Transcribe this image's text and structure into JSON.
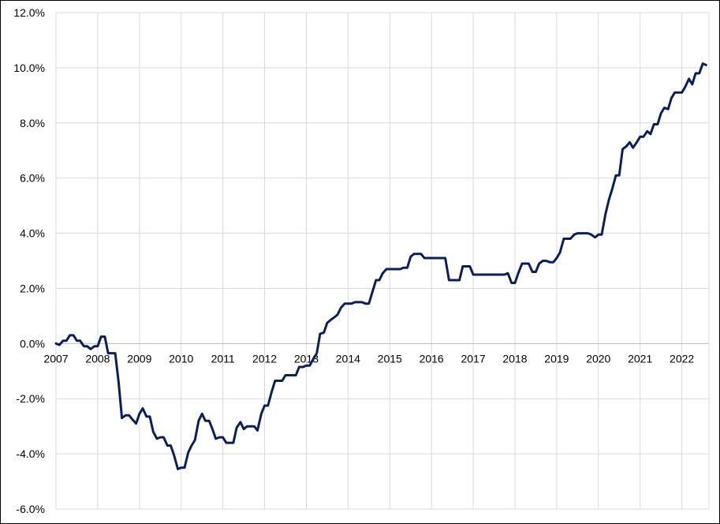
{
  "chart_data": {
    "type": "line",
    "title": "",
    "xlabel": "",
    "ylabel": "",
    "ylim": [
      -6,
      12
    ],
    "xlim": [
      2007.0,
      2022.65
    ],
    "grid": true,
    "legend": "none",
    "line_color": "#0b1f5c",
    "grid_color": "#d9d9d9",
    "x_ticks": [
      "2007",
      "2008",
      "2009",
      "2010",
      "2011",
      "2012",
      "2013",
      "2014",
      "2015",
      "2016",
      "2017",
      "2018",
      "2019",
      "2020",
      "2021",
      "2022"
    ],
    "y_ticks": [
      "12.0%",
      "10.0%",
      "8.0%",
      "6.0%",
      "4.0%",
      "2.0%",
      "0.0%",
      "-2.0%",
      "-4.0%",
      "-6.0%"
    ],
    "series": [
      {
        "x": [
          2007.0,
          2007.08,
          2007.17,
          2007.25,
          2007.33,
          2007.42,
          2007.5,
          2007.58,
          2007.67,
          2007.75,
          2007.83,
          2007.92,
          2008.0,
          2008.08,
          2008.17,
          2008.25,
          2008.33,
          2008.42,
          2008.5,
          2008.58,
          2008.67,
          2008.75,
          2008.83,
          2008.92,
          2009.0,
          2009.08,
          2009.17,
          2009.25,
          2009.33,
          2009.42,
          2009.5,
          2009.58,
          2009.67,
          2009.75,
          2009.83,
          2009.92,
          2010.0,
          2010.08,
          2010.17,
          2010.25,
          2010.33,
          2010.42,
          2010.5,
          2010.58,
          2010.67,
          2010.75,
          2010.83,
          2010.92,
          2011.0,
          2011.08,
          2011.17,
          2011.25,
          2011.33,
          2011.42,
          2011.5,
          2011.58,
          2011.67,
          2011.75,
          2011.83,
          2011.92,
          2012.0,
          2012.08,
          2012.17,
          2012.25,
          2012.33,
          2012.42,
          2012.5,
          2012.58,
          2012.67,
          2012.75,
          2012.83,
          2012.92,
          2013.0,
          2013.08,
          2013.17,
          2013.25,
          2013.33,
          2013.42,
          2013.5,
          2013.58,
          2013.67,
          2013.75,
          2013.83,
          2013.92,
          2014.0,
          2014.08,
          2014.17,
          2014.25,
          2014.33,
          2014.42,
          2014.5,
          2014.58,
          2014.67,
          2014.75,
          2014.83,
          2014.92,
          2015.0,
          2015.08,
          2015.17,
          2015.25,
          2015.33,
          2015.42,
          2015.5,
          2015.58,
          2015.67,
          2015.75,
          2015.83,
          2015.92,
          2016.0,
          2016.08,
          2016.17,
          2016.25,
          2016.33,
          2016.42,
          2016.5,
          2016.58,
          2016.67,
          2016.75,
          2016.83,
          2016.92,
          2017.0,
          2017.08,
          2017.17,
          2017.25,
          2017.33,
          2017.42,
          2017.5,
          2017.58,
          2017.67,
          2017.75,
          2017.83,
          2017.92,
          2018.0,
          2018.08,
          2018.17,
          2018.25,
          2018.33,
          2018.42,
          2018.5,
          2018.58,
          2018.67,
          2018.75,
          2018.83,
          2018.92,
          2019.0,
          2019.08,
          2019.17,
          2019.25,
          2019.33,
          2019.42,
          2019.5,
          2019.58,
          2019.67,
          2019.75,
          2019.83,
          2019.92,
          2020.0,
          2020.08,
          2020.17,
          2020.25,
          2020.33,
          2020.42,
          2020.5,
          2020.58,
          2020.67,
          2020.75,
          2020.83,
          2020.92,
          2021.0,
          2021.08,
          2021.17,
          2021.25,
          2021.33,
          2021.42,
          2021.5,
          2021.58,
          2021.67,
          2021.75,
          2021.83,
          2021.92,
          2022.0,
          2022.08,
          2022.17,
          2022.25,
          2022.33,
          2022.42,
          2022.5,
          2022.58
        ],
        "values": [
          0.0,
          -0.05,
          0.1,
          0.1,
          0.3,
          0.3,
          0.1,
          0.1,
          -0.1,
          -0.1,
          -0.2,
          -0.1,
          -0.1,
          0.25,
          0.25,
          -0.35,
          -0.35,
          -0.35,
          -1.4,
          -2.7,
          -2.6,
          -2.6,
          -2.75,
          -2.9,
          -2.55,
          -2.35,
          -2.65,
          -2.65,
          -3.2,
          -3.45,
          -3.4,
          -3.4,
          -3.7,
          -3.7,
          -4.05,
          -4.55,
          -4.5,
          -4.5,
          -3.95,
          -3.7,
          -3.5,
          -2.8,
          -2.55,
          -2.8,
          -2.8,
          -3.1,
          -3.45,
          -3.4,
          -3.4,
          -3.6,
          -3.6,
          -3.6,
          -3.05,
          -2.85,
          -3.1,
          -3.0,
          -3.0,
          -3.0,
          -3.15,
          -2.55,
          -2.25,
          -2.25,
          -1.75,
          -1.35,
          -1.35,
          -1.35,
          -1.15,
          -1.15,
          -1.15,
          -1.15,
          -0.85,
          -0.85,
          -0.8,
          -0.8,
          -0.55,
          -0.35,
          0.35,
          0.4,
          0.75,
          0.85,
          0.95,
          1.05,
          1.3,
          1.45,
          1.45,
          1.45,
          1.5,
          1.5,
          1.5,
          1.45,
          1.45,
          1.85,
          2.3,
          2.3,
          2.55,
          2.7,
          2.7,
          2.7,
          2.7,
          2.7,
          2.75,
          2.75,
          3.15,
          3.25,
          3.25,
          3.25,
          3.1,
          3.1,
          3.1,
          3.1,
          3.1,
          3.1,
          3.1,
          2.3,
          2.3,
          2.3,
          2.3,
          2.8,
          2.8,
          2.8,
          2.5,
          2.5,
          2.5,
          2.5,
          2.5,
          2.5,
          2.5,
          2.5,
          2.5,
          2.5,
          2.55,
          2.2,
          2.2,
          2.55,
          2.9,
          2.9,
          2.9,
          2.6,
          2.6,
          2.9,
          3.0,
          3.0,
          2.95,
          2.95,
          3.1,
          3.3,
          3.8,
          3.8,
          3.8,
          3.95,
          4.0,
          4.0,
          4.0,
          4.0,
          3.95,
          3.85,
          3.95,
          3.95,
          4.7,
          5.2,
          5.6,
          6.1,
          6.1,
          7.05,
          7.15,
          7.3,
          7.1,
          7.3,
          7.5,
          7.5,
          7.7,
          7.6,
          7.95,
          7.95,
          8.35,
          8.55,
          8.5,
          8.9,
          9.1,
          9.1,
          9.1,
          9.3,
          9.6,
          9.4,
          9.8,
          9.8,
          10.15,
          10.1
        ]
      }
    ]
  }
}
